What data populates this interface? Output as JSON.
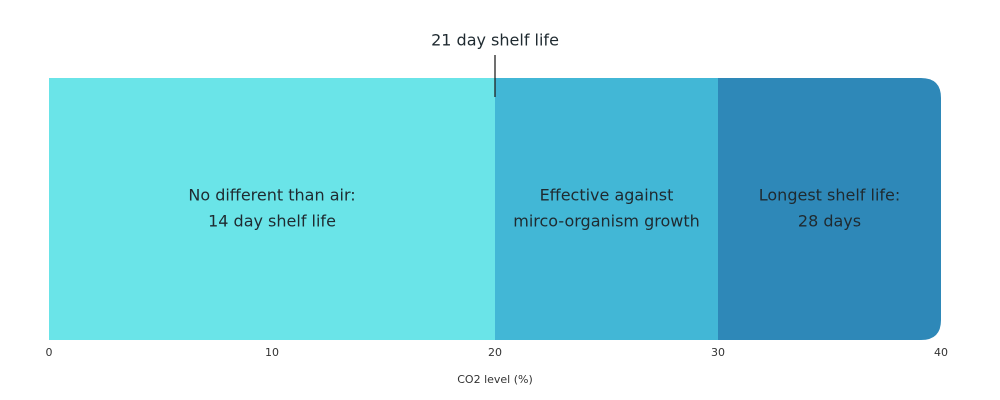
{
  "chart_data": {
    "type": "stacked-range",
    "xlabel": "CO2 level (%)",
    "xlim": [
      0,
      40
    ],
    "xticks": [
      0,
      10,
      20,
      30,
      40
    ],
    "segments": [
      {
        "value": 20,
        "color": "#6ae4e8",
        "label": [
          "No different than air:",
          "14 day shelf life"
        ]
      },
      {
        "value": 10,
        "color": "#42b7d6",
        "label": [
          "Effective against",
          "mirco-organism growth"
        ]
      },
      {
        "value": 10,
        "color": "#2e88b8",
        "label": [
          "Longest shelf life:",
          "28 days"
        ]
      }
    ],
    "annotation": {
      "text": "21 day shelf life",
      "x": 20
    }
  }
}
